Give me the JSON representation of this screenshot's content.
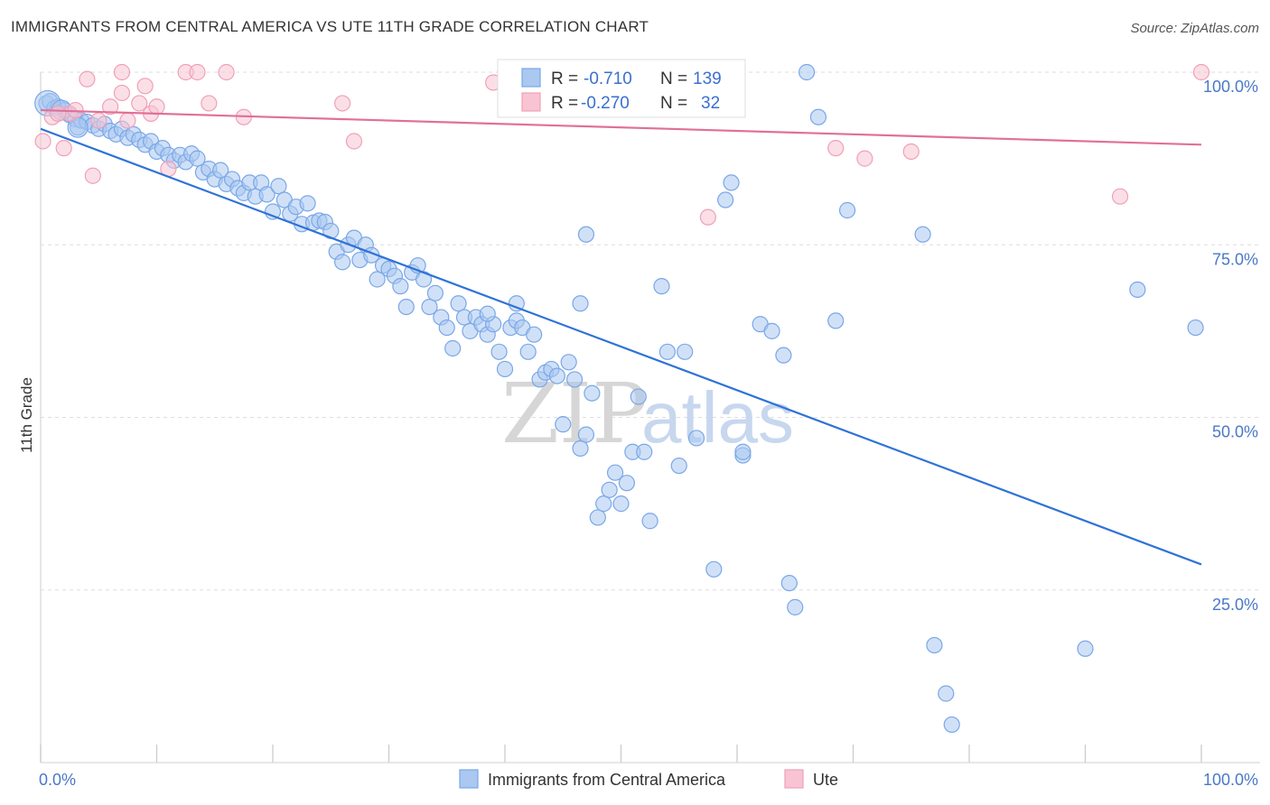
{
  "chart_data": {
    "type": "scatter",
    "title": "IMMIGRANTS FROM CENTRAL AMERICA VS UTE 11TH GRADE CORRELATION CHART",
    "source": "Source: ZipAtlas.com",
    "ylabel": "11th Grade",
    "xlim": [
      0,
      100
    ],
    "ylim": [
      0,
      100
    ],
    "x_tick_labels": [
      "0.0%",
      "100.0%"
    ],
    "y_tick_labels": [
      "100.0%",
      "75.0%",
      "50.0%",
      "25.0%"
    ],
    "y_tick_values": [
      100,
      75,
      50,
      25
    ],
    "grid": true,
    "legend_position": "bottom",
    "watermark": "ZIPatlas",
    "stats": [
      {
        "r_label": "R =",
        "r": "-0.710",
        "n_label": "N =",
        "n": "139"
      },
      {
        "r_label": "R =",
        "r": "-0.270",
        "n_label": "N =",
        "n": "32"
      }
    ],
    "series": [
      {
        "name": "Immigrants from Central America",
        "color": "#7aa7e8",
        "fill": "#aac8f0",
        "line_color": "#2f72d8",
        "trend": {
          "x0": 0,
          "y0": 91.8,
          "x1": 100,
          "y1": 28.7
        },
        "points": [
          [
            0.5,
            95.5
          ],
          [
            0.8,
            95.8
          ],
          [
            1.2,
            94.8
          ],
          [
            1.5,
            95.0
          ],
          [
            2.0,
            94.5
          ],
          [
            2.5,
            93.8
          ],
          [
            3.0,
            93.2
          ],
          [
            3.2,
            92.0
          ],
          [
            3.5,
            93.0
          ],
          [
            4.0,
            92.8
          ],
          [
            4.5,
            92.3
          ],
          [
            5.0,
            91.8
          ],
          [
            5.5,
            92.5
          ],
          [
            6.0,
            91.5
          ],
          [
            6.5,
            91.0
          ],
          [
            7.0,
            91.8
          ],
          [
            7.5,
            90.5
          ],
          [
            8.0,
            91.0
          ],
          [
            8.5,
            90.2
          ],
          [
            9.0,
            89.5
          ],
          [
            9.5,
            90.0
          ],
          [
            10.0,
            88.5
          ],
          [
            10.5,
            89.0
          ],
          [
            11.0,
            88.0
          ],
          [
            11.5,
            87.2
          ],
          [
            12.0,
            88.0
          ],
          [
            12.5,
            87.0
          ],
          [
            13.0,
            88.2
          ],
          [
            13.5,
            87.5
          ],
          [
            14.0,
            85.5
          ],
          [
            14.5,
            86.0
          ],
          [
            15.0,
            84.5
          ],
          [
            15.5,
            85.8
          ],
          [
            16.0,
            83.8
          ],
          [
            16.5,
            84.5
          ],
          [
            17.0,
            83.2
          ],
          [
            17.5,
            82.5
          ],
          [
            18.0,
            84.0
          ],
          [
            18.5,
            82.0
          ],
          [
            19.0,
            84.0
          ],
          [
            19.5,
            82.3
          ],
          [
            20.0,
            79.8
          ],
          [
            20.5,
            83.5
          ],
          [
            21.0,
            81.5
          ],
          [
            21.5,
            79.5
          ],
          [
            22.0,
            80.5
          ],
          [
            22.5,
            78.0
          ],
          [
            23.0,
            81.0
          ],
          [
            23.5,
            78.2
          ],
          [
            24.0,
            78.5
          ],
          [
            24.5,
            78.3
          ],
          [
            25.0,
            77.0
          ],
          [
            25.5,
            74.0
          ],
          [
            26.0,
            72.5
          ],
          [
            26.5,
            75.0
          ],
          [
            27.0,
            76.0
          ],
          [
            27.5,
            72.8
          ],
          [
            28.0,
            75.0
          ],
          [
            28.5,
            73.5
          ],
          [
            29.0,
            70.0
          ],
          [
            29.5,
            72.0
          ],
          [
            30.0,
            71.5
          ],
          [
            30.5,
            70.5
          ],
          [
            31.0,
            69.0
          ],
          [
            31.5,
            66.0
          ],
          [
            32.0,
            71.0
          ],
          [
            32.5,
            72.0
          ],
          [
            33.0,
            70.0
          ],
          [
            33.5,
            66.0
          ],
          [
            34.0,
            68.0
          ],
          [
            34.5,
            64.5
          ],
          [
            35.0,
            63.0
          ],
          [
            35.5,
            60.0
          ],
          [
            36.0,
            66.5
          ],
          [
            36.5,
            64.5
          ],
          [
            37.0,
            62.5
          ],
          [
            37.5,
            64.5
          ],
          [
            38.0,
            63.5
          ],
          [
            38.5,
            62.0
          ],
          [
            39.0,
            63.5
          ],
          [
            39.5,
            59.5
          ],
          [
            40.0,
            57.0
          ],
          [
            40.5,
            63.0
          ],
          [
            41.0,
            64.0
          ],
          [
            41.5,
            63.0
          ],
          [
            42.0,
            59.5
          ],
          [
            42.5,
            62.0
          ],
          [
            43.0,
            55.5
          ],
          [
            43.5,
            56.5
          ],
          [
            44.0,
            57.0
          ],
          [
            44.5,
            56.0
          ],
          [
            45.0,
            49.0
          ],
          [
            45.5,
            58.0
          ],
          [
            46.0,
            55.5
          ],
          [
            46.5,
            45.5
          ],
          [
            47.0,
            47.5
          ],
          [
            47.5,
            53.5
          ],
          [
            48.0,
            35.5
          ],
          [
            48.5,
            37.5
          ],
          [
            49.0,
            39.5
          ],
          [
            49.5,
            42.0
          ],
          [
            50.0,
            37.5
          ],
          [
            50.5,
            40.5
          ],
          [
            51.0,
            45.0
          ],
          [
            51.5,
            53.0
          ],
          [
            52.0,
            45.0
          ],
          [
            52.5,
            35.0
          ],
          [
            53.5,
            69.0
          ],
          [
            54.0,
            59.5
          ],
          [
            55.0,
            43.0
          ],
          [
            55.5,
            59.5
          ],
          [
            56.5,
            47.0
          ],
          [
            58.0,
            28.0
          ],
          [
            59.0,
            81.5
          ],
          [
            59.5,
            84.0
          ],
          [
            60.5,
            44.5
          ],
          [
            60.5,
            45.0
          ],
          [
            62.0,
            63.5
          ],
          [
            63.0,
            62.5
          ],
          [
            64.0,
            59.0
          ],
          [
            64.5,
            26.0
          ],
          [
            65.0,
            22.5
          ],
          [
            66.0,
            100.0
          ],
          [
            67.0,
            93.5
          ],
          [
            68.5,
            64.0
          ],
          [
            69.5,
            80.0
          ],
          [
            76.0,
            76.5
          ],
          [
            77.0,
            17.0
          ],
          [
            78.0,
            10.0
          ],
          [
            78.5,
            5.5
          ],
          [
            90.0,
            16.5
          ],
          [
            94.5,
            68.5
          ],
          [
            99.5,
            63.0
          ],
          [
            41.0,
            66.5
          ],
          [
            38.5,
            65.0
          ],
          [
            46.5,
            66.5
          ],
          [
            47.0,
            76.5
          ],
          [
            50.5,
            100.0
          ]
        ]
      },
      {
        "name": "Ute",
        "color": "#f0a0b8",
        "fill": "#f8c4d4",
        "line_color": "#e07099",
        "trend": {
          "x0": 0,
          "y0": 94.5,
          "x1": 100,
          "y1": 89.5
        },
        "points": [
          [
            0.2,
            90.0
          ],
          [
            1.0,
            93.5
          ],
          [
            2.0,
            89.0
          ],
          [
            2.5,
            94.0
          ],
          [
            3.0,
            94.5
          ],
          [
            4.5,
            85.0
          ],
          [
            5.0,
            93.0
          ],
          [
            6.0,
            95.0
          ],
          [
            7.0,
            100.0
          ],
          [
            7.0,
            97.0
          ],
          [
            7.5,
            93.0
          ],
          [
            8.5,
            95.5
          ],
          [
            9.5,
            94.0
          ],
          [
            10.0,
            95.0
          ],
          [
            11.0,
            86.0
          ],
          [
            12.5,
            100.0
          ],
          [
            13.5,
            100.0
          ],
          [
            14.5,
            95.5
          ],
          [
            16.0,
            100.0
          ],
          [
            17.5,
            93.5
          ],
          [
            26.0,
            95.5
          ],
          [
            27.0,
            90.0
          ],
          [
            39.0,
            98.5
          ],
          [
            57.5,
            79.0
          ],
          [
            68.5,
            89.0
          ],
          [
            71.0,
            87.5
          ],
          [
            75.0,
            88.5
          ],
          [
            93.0,
            82.0
          ],
          [
            100.0,
            100.0
          ],
          [
            4.0,
            99.0
          ],
          [
            9.0,
            98.0
          ],
          [
            1.5,
            94.0
          ]
        ]
      }
    ]
  }
}
